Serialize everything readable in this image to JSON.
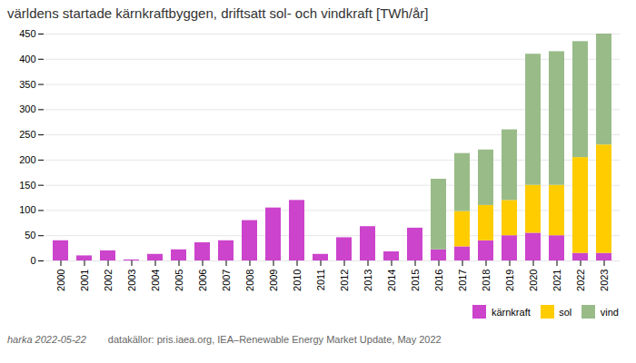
{
  "chart_data": {
    "type": "bar",
    "stacked": true,
    "title": "världens startade kärnkraftbyggen, driftsatt sol- och vindkraft [TWh/år]",
    "categories": [
      "2000",
      "2001",
      "2002",
      "2003",
      "2004",
      "2005",
      "2006",
      "2007",
      "2008",
      "2009",
      "2010",
      "2011",
      "2012",
      "2013",
      "2014",
      "2015",
      "2016",
      "2017",
      "2018",
      "2019",
      "2020",
      "2021",
      "2022",
      "2023"
    ],
    "series": [
      {
        "name": "kärnkraft",
        "color": "#cc44cc",
        "values": [
          40,
          10,
          20,
          2,
          13,
          22,
          36,
          40,
          80,
          105,
          120,
          13,
          46,
          68,
          18,
          65,
          22,
          28,
          40,
          50,
          55,
          50,
          15,
          15
        ]
      },
      {
        "name": "sol",
        "color": "#ffcc00",
        "values": [
          0,
          0,
          0,
          0,
          0,
          0,
          0,
          0,
          0,
          0,
          0,
          0,
          0,
          0,
          0,
          0,
          0,
          70,
          70,
          70,
          95,
          100,
          190,
          215
        ]
      },
      {
        "name": "vind",
        "color": "#99bb88",
        "values": [
          0,
          0,
          0,
          0,
          0,
          0,
          0,
          0,
          0,
          0,
          0,
          0,
          0,
          0,
          0,
          0,
          140,
          115,
          110,
          140,
          260,
          265,
          230,
          220
        ]
      }
    ],
    "ylim": [
      0,
      450
    ],
    "yticks": [
      0,
      50,
      100,
      150,
      200,
      250,
      300,
      350,
      400,
      450
    ],
    "grid": true,
    "legend": "lower right",
    "annotations": [
      "harka 2022-05-22",
      "datakällor: pris.iaea.org,  IEA–Renewable Energy Market Update, May 2022"
    ]
  }
}
